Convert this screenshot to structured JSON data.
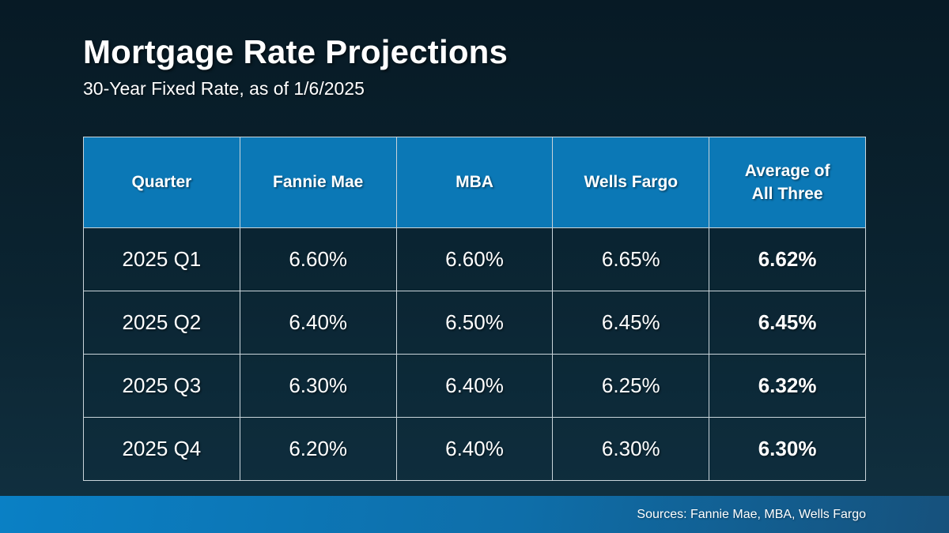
{
  "slide": {
    "title": "Mortgage Rate Projections",
    "subtitle": "30-Year Fixed Rate, as of 1/6/2025",
    "footer_source": "Sources: Fannie Mae, MBA, Wells Fargo"
  },
  "table": {
    "columns": [
      "Quarter",
      "Fannie Mae",
      "MBA",
      "Wells Fargo",
      "Average of All Three"
    ],
    "rows": [
      {
        "cells": [
          "2025 Q1",
          "6.60%",
          "6.60%",
          "6.65%",
          "6.62%"
        ]
      },
      {
        "cells": [
          "2025 Q2",
          "6.40%",
          "6.50%",
          "6.45%",
          "6.45%"
        ]
      },
      {
        "cells": [
          "2025 Q3",
          "6.30%",
          "6.40%",
          "6.25%",
          "6.32%"
        ]
      },
      {
        "cells": [
          "2025 Q4",
          "6.20%",
          "6.40%",
          "6.30%",
          "6.30%"
        ]
      }
    ]
  },
  "chart_data": {
    "type": "table",
    "title": "Mortgage Rate Projections",
    "subtitle": "30-Year Fixed Rate, as of 1/6/2025",
    "unit": "%",
    "categories": [
      "2025 Q1",
      "2025 Q2",
      "2025 Q3",
      "2025 Q4"
    ],
    "series": [
      {
        "name": "Fannie Mae",
        "values": [
          6.6,
          6.4,
          6.3,
          6.2
        ]
      },
      {
        "name": "MBA",
        "values": [
          6.6,
          6.5,
          6.4,
          6.4
        ]
      },
      {
        "name": "Wells Fargo",
        "values": [
          6.65,
          6.45,
          6.25,
          6.3
        ]
      },
      {
        "name": "Average of All Three",
        "values": [
          6.62,
          6.45,
          6.32,
          6.3
        ]
      }
    ],
    "annotations": [
      "Sources: Fannie Mae, MBA, Wells Fargo"
    ]
  },
  "colors": {
    "background_top": "#071a25",
    "background_bottom": "#113141",
    "header_blue": "#0b78b6",
    "footer_gradient_start": "#0a80c5",
    "footer_gradient_end": "#16517c",
    "table_border": "#c9d4da",
    "text": "#ffffff"
  }
}
